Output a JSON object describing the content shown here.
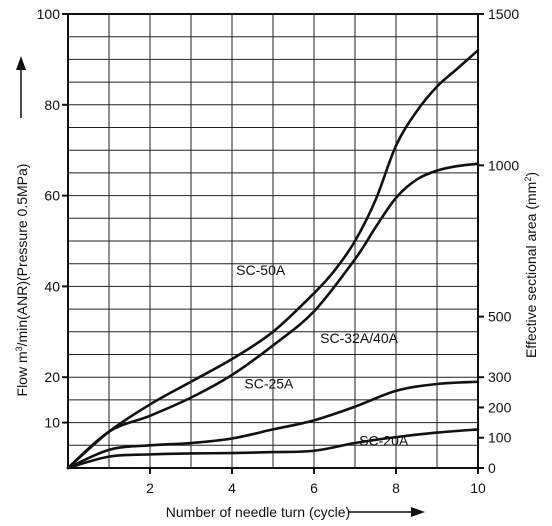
{
  "chart_data": {
    "type": "line",
    "xlabel": "Number of needle turn (cycle)",
    "ylabel_left": "Flow m³/min(ANR)(Pressure 0.5MPa)",
    "ylabel_right": "Effective sectional area (mm²)",
    "xlim": [
      0,
      10
    ],
    "ylim_left": [
      0,
      100
    ],
    "ylim_right": [
      0,
      1500
    ],
    "x_ticks": [
      2,
      4,
      6,
      8,
      10
    ],
    "y_ticks_left": [
      10,
      20,
      40,
      60,
      80,
      100
    ],
    "y_ticks_right": [
      0,
      100,
      200,
      300,
      500,
      1000,
      1500
    ],
    "grid": true,
    "series": [
      {
        "name": "SC-50A",
        "label_at": [
          4.7,
          42.5
        ],
        "x": [
          0,
          1,
          2,
          3,
          4,
          5,
          6,
          6.5,
          7,
          7.5,
          8,
          8.5,
          9,
          9.5,
          10
        ],
        "values": [
          0,
          8,
          14,
          19,
          24,
          30,
          38.5,
          43.5,
          50,
          59,
          71,
          78.5,
          84,
          88,
          92
        ]
      },
      {
        "name": "SC-32A/40A",
        "label_at": [
          7.1,
          27.5
        ],
        "x": [
          0,
          1,
          2,
          3,
          4,
          5,
          6,
          7,
          7.5,
          8,
          8.5,
          9,
          9.5,
          10
        ],
        "values": [
          0,
          8,
          11.5,
          15.5,
          20.5,
          27,
          34.5,
          46,
          53,
          59.5,
          63.5,
          65.5,
          66.5,
          67
        ]
      },
      {
        "name": "SC-25A",
        "label_at": [
          4.9,
          17.5
        ],
        "x": [
          0,
          1,
          2,
          3,
          4,
          5,
          6,
          7,
          8,
          9,
          10
        ],
        "values": [
          0,
          4,
          5,
          5.5,
          6.5,
          8.5,
          10.5,
          13.5,
          17,
          18.5,
          19
        ]
      },
      {
        "name": "SC-20A",
        "label_at": [
          7.7,
          5
        ],
        "x": [
          0,
          1,
          2,
          3,
          4,
          5,
          6,
          7,
          8,
          9,
          10
        ],
        "values": [
          0,
          2.5,
          3,
          3.2,
          3.3,
          3.5,
          3.8,
          5.5,
          6.8,
          7.8,
          8.5
        ]
      }
    ]
  }
}
